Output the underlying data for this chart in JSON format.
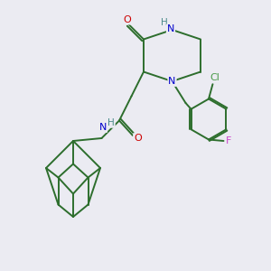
{
  "background_color": "#ebebf2",
  "bond_color": "#2d6e2d",
  "atom_colors": {
    "N": "#0000cc",
    "O": "#cc0000",
    "H": "#4a8a8a",
    "Cl": "#4a9a4a",
    "F": "#cc44cc"
  },
  "bond_width": 1.4,
  "figsize": [
    3.0,
    3.0
  ],
  "dpi": 100
}
